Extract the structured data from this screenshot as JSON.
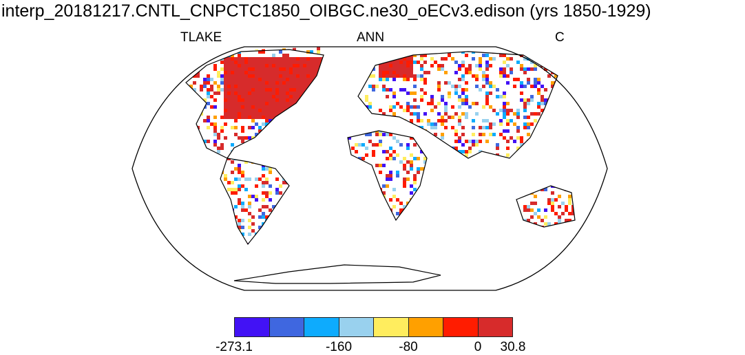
{
  "title": "interp_20181217.CNTL_CNPCTC1850_OIBGC.ne30_oECv3.edison (yrs 1850-1929)",
  "left_string": "TLAKE",
  "center_string": "ANN",
  "right_string": "C",
  "colorbar": {
    "colors": [
      "#4212f5",
      "#3f67e0",
      "#0eabfd",
      "#99d1ee",
      "#ffed5e",
      "#ffa000",
      "#ff1c00",
      "#d72b2b"
    ],
    "labels": [
      "-273.1",
      "-160",
      "-80",
      "0",
      "30.8"
    ]
  }
}
